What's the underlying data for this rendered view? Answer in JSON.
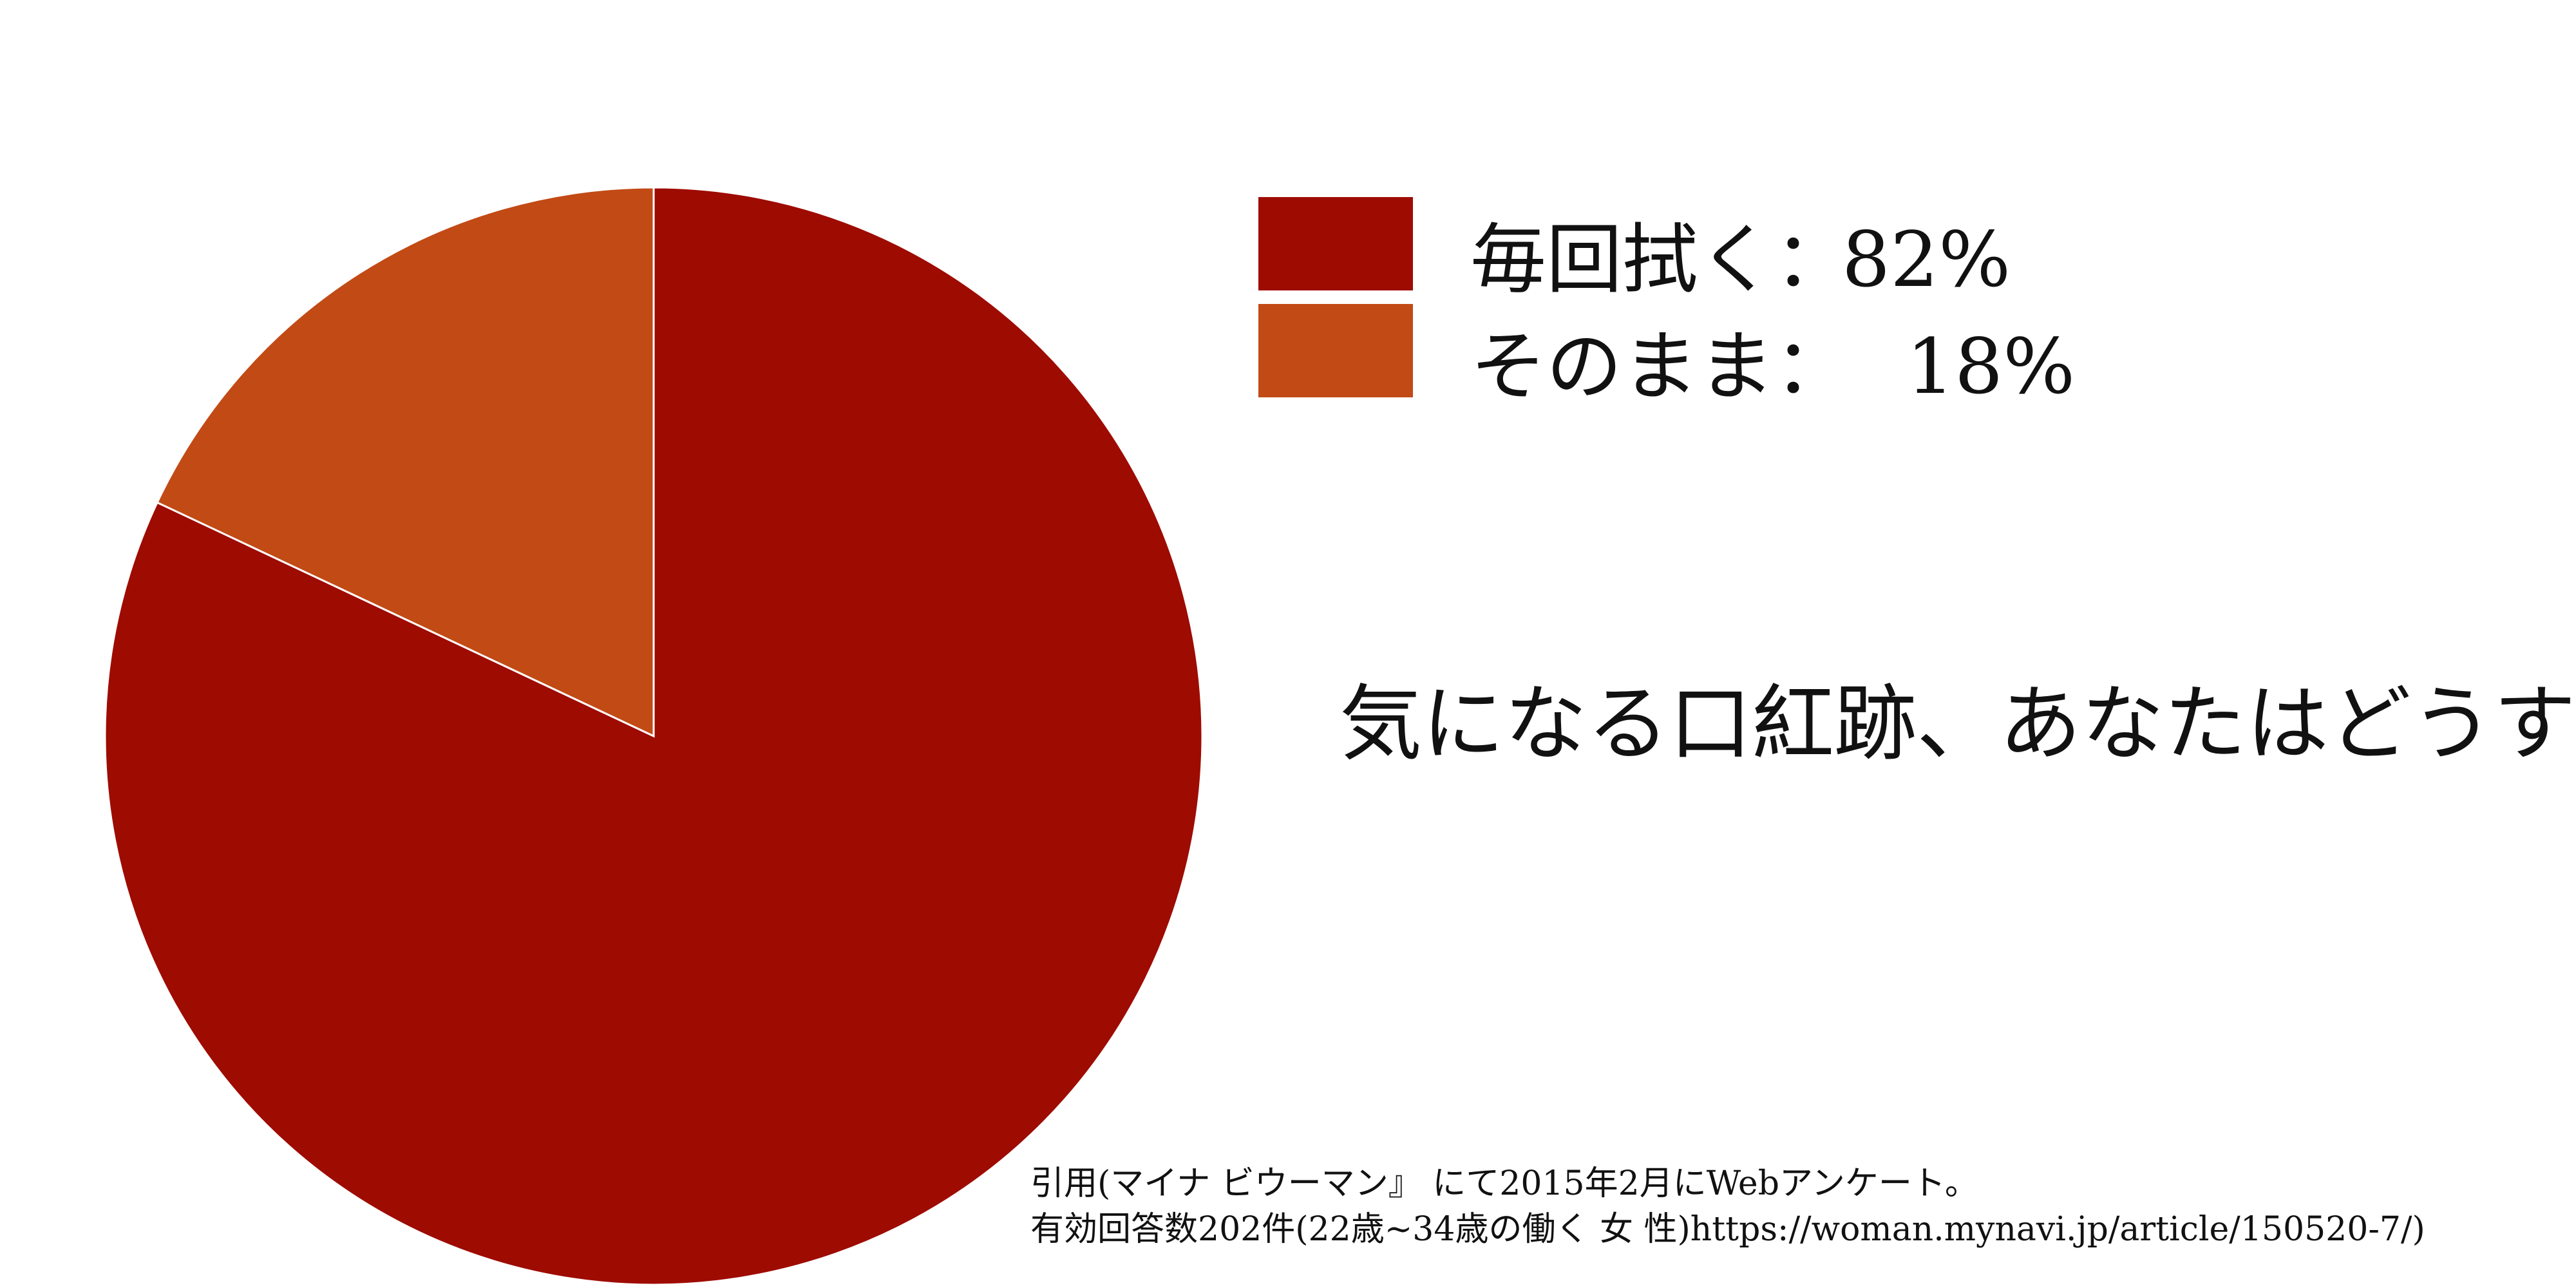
{
  "chart_data": {
    "type": "pie",
    "title": "気になる口紅跡、あなたはどうする？",
    "categories": [
      "毎回拭く",
      "そのまま"
    ],
    "values": [
      82,
      18
    ],
    "value_labels": [
      "82%",
      "18%"
    ],
    "delimiter": "：",
    "colors": [
      "#9e0b00",
      "#c24a15"
    ],
    "source": [
      "引用(マイナ ビウーマン』 にて2015年2月にWebアンケート。",
      "有効回答数202件(22歳~34歳の働く 女 性)https://woman.mynavi.jp/article/150520-7/)"
    ]
  }
}
